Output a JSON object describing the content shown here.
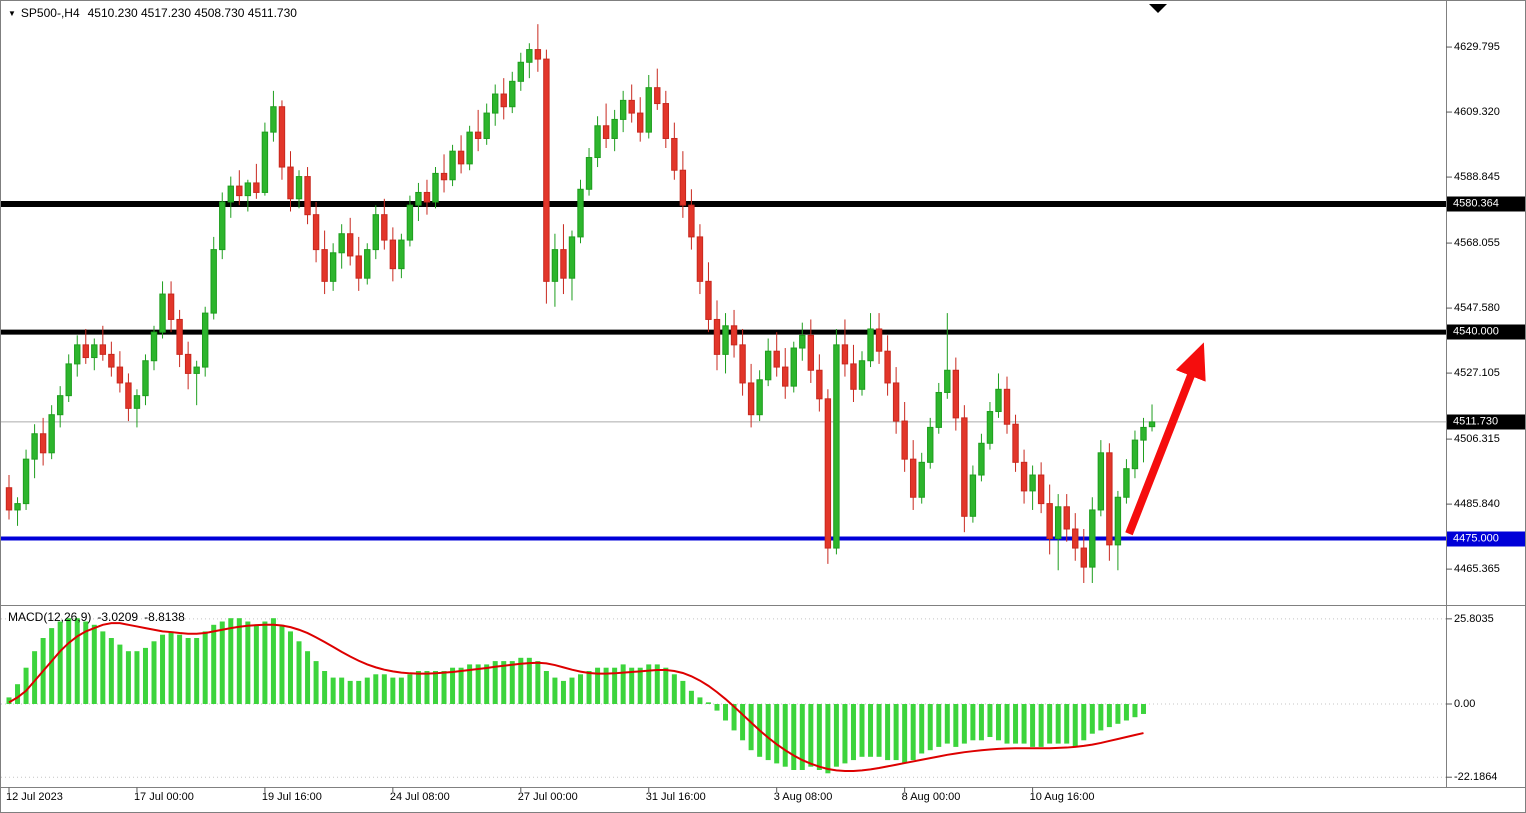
{
  "header": {
    "collapse_icon": "▼",
    "title": "SP500-,H4",
    "ohlc_text": "4510.230 4517.230 4508.730 4511.730"
  },
  "chart_data": {
    "type": "candlestick",
    "symbol": "SP500-",
    "timeframe": "H4",
    "last_bar": {
      "open": "4510.230",
      "high": "4517.230",
      "low": "4508.730",
      "close": "4511.730"
    },
    "price_axis": {
      "labels": [
        "4629.795",
        "4609.320",
        "4588.845",
        "4568.055",
        "4547.580",
        "4527.105",
        "4506.315",
        "4485.840",
        "4465.365"
      ]
    },
    "levels": [
      {
        "label": "4580.364",
        "price": 4580.364,
        "color": "#000000",
        "thickness": 6,
        "badge_bg": "#000000"
      },
      {
        "label": "4540.000",
        "price": 4540.0,
        "color": "#000000",
        "thickness": 5,
        "badge_bg": "#000000"
      },
      {
        "label": "4475.000",
        "price": 4475.0,
        "color": "#0000D8",
        "thickness": 4,
        "badge_bg": "#0000D8"
      }
    ],
    "current_price": {
      "label": "4511.730",
      "price": 4511.73,
      "badge_bg": "#000000"
    },
    "x_axis": {
      "labels": [
        {
          "bar": 0,
          "text": "12 Jul 2023"
        },
        {
          "bar": 15,
          "text": "17 Jul 00:00"
        },
        {
          "bar": 30,
          "text": "19 Jul 16:00"
        },
        {
          "bar": 45,
          "text": "24 Jul 08:00"
        },
        {
          "bar": 60,
          "text": "27 Jul 00:00"
        },
        {
          "bar": 75,
          "text": "31 Jul 16:00"
        },
        {
          "bar": 90,
          "text": "3 Aug 08:00"
        },
        {
          "bar": 105,
          "text": "8 Aug 00:00"
        },
        {
          "bar": 120,
          "text": "10 Aug 16:00"
        }
      ]
    },
    "candles": [
      [
        4491,
        4495,
        4481,
        4484
      ],
      [
        4484,
        4488,
        4479,
        4486
      ],
      [
        4486,
        4503,
        4484,
        4500
      ],
      [
        4500,
        4511,
        4494,
        4508
      ],
      [
        4508,
        4513,
        4498,
        4502
      ],
      [
        4502,
        4517,
        4500,
        4514
      ],
      [
        4514,
        4523,
        4510,
        4520
      ],
      [
        4520,
        4533,
        4518,
        4530
      ],
      [
        4530,
        4539,
        4526,
        4536
      ],
      [
        4536,
        4541,
        4530,
        4532
      ],
      [
        4532,
        4538,
        4528,
        4536
      ],
      [
        4536,
        4542,
        4531,
        4533
      ],
      [
        4533,
        4537,
        4526,
        4529
      ],
      [
        4529,
        4534,
        4521,
        4524
      ],
      [
        4524,
        4527,
        4512,
        4516
      ],
      [
        4516,
        4522,
        4510,
        4520
      ],
      [
        4520,
        4533,
        4517,
        4531
      ],
      [
        4531,
        4542,
        4528,
        4540
      ],
      [
        4540,
        4556,
        4538,
        4552
      ],
      [
        4552,
        4556,
        4540,
        4544
      ],
      [
        4544,
        4547,
        4529,
        4533
      ],
      [
        4533,
        4537,
        4522,
        4527
      ],
      [
        4527,
        4531,
        4517,
        4529
      ],
      [
        4529,
        4548,
        4526,
        4546
      ],
      [
        4546,
        4570,
        4544,
        4566
      ],
      [
        4566,
        4584,
        4563,
        4581
      ],
      [
        4581,
        4589,
        4576,
        4586
      ],
      [
        4586,
        4591,
        4580,
        4583
      ],
      [
        4583,
        4588,
        4578,
        4587
      ],
      [
        4587,
        4593,
        4582,
        4584
      ],
      [
        4584,
        4606,
        4583,
        4603
      ],
      [
        4603,
        4616,
        4600,
        4611
      ],
      [
        4611,
        4613,
        4588,
        4592
      ],
      [
        4592,
        4597,
        4578,
        4582
      ],
      [
        4582,
        4591,
        4579,
        4589
      ],
      [
        4589,
        4592,
        4574,
        4577
      ],
      [
        4577,
        4581,
        4562,
        4566
      ],
      [
        4566,
        4572,
        4552,
        4556
      ],
      [
        4556,
        4568,
        4553,
        4565
      ],
      [
        4565,
        4574,
        4560,
        4571
      ],
      [
        4571,
        4576,
        4561,
        4564
      ],
      [
        4564,
        4570,
        4553,
        4557
      ],
      [
        4557,
        4568,
        4555,
        4566
      ],
      [
        4566,
        4580,
        4563,
        4577
      ],
      [
        4577,
        4582,
        4566,
        4569
      ],
      [
        4569,
        4573,
        4556,
        4560
      ],
      [
        4560,
        4571,
        4557,
        4569
      ],
      [
        4569,
        4583,
        4567,
        4580
      ],
      [
        4580,
        4587,
        4575,
        4584
      ],
      [
        4584,
        4588,
        4577,
        4581
      ],
      [
        4581,
        4592,
        4579,
        4590
      ],
      [
        4590,
        4596,
        4584,
        4588
      ],
      [
        4588,
        4599,
        4586,
        4597
      ],
      [
        4597,
        4602,
        4590,
        4593
      ],
      [
        4593,
        4605,
        4591,
        4603
      ],
      [
        4603,
        4610,
        4597,
        4601
      ],
      [
        4601,
        4612,
        4599,
        4609
      ],
      [
        4609,
        4618,
        4605,
        4615
      ],
      [
        4615,
        4620,
        4607,
        4611
      ],
      [
        4611,
        4622,
        4609,
        4619
      ],
      [
        4619,
        4628,
        4616,
        4625
      ],
      [
        4625,
        4631,
        4620,
        4629
      ],
      [
        4629,
        4637,
        4622,
        4626
      ],
      [
        4626,
        4629,
        4549,
        4556
      ],
      [
        4556,
        4571,
        4548,
        4566
      ],
      [
        4566,
        4574,
        4552,
        4557
      ],
      [
        4557,
        4572,
        4550,
        4570
      ],
      [
        4570,
        4588,
        4568,
        4585
      ],
      [
        4585,
        4598,
        4583,
        4595
      ],
      [
        4595,
        4608,
        4592,
        4605
      ],
      [
        4605,
        4612,
        4598,
        4601
      ],
      [
        4601,
        4610,
        4597,
        4607
      ],
      [
        4607,
        4616,
        4603,
        4613
      ],
      [
        4613,
        4618,
        4606,
        4609
      ],
      [
        4609,
        4614,
        4600,
        4603
      ],
      [
        4603,
        4621,
        4601,
        4617
      ],
      [
        4617,
        4623,
        4610,
        4612
      ],
      [
        4612,
        4616,
        4598,
        4601
      ],
      [
        4601,
        4606,
        4588,
        4591
      ],
      [
        4591,
        4597,
        4576,
        4580
      ],
      [
        4580,
        4585,
        4566,
        4570
      ],
      [
        4570,
        4574,
        4552,
        4556
      ],
      [
        4556,
        4562,
        4540,
        4544
      ],
      [
        4544,
        4550,
        4528,
        4533
      ],
      [
        4533,
        4546,
        4527,
        4542
      ],
      [
        4542,
        4547,
        4532,
        4536
      ],
      [
        4536,
        4541,
        4520,
        4524
      ],
      [
        4524,
        4530,
        4510,
        4514
      ],
      [
        4514,
        4528,
        4512,
        4525
      ],
      [
        4525,
        4538,
        4523,
        4534
      ],
      [
        4534,
        4540,
        4526,
        4529
      ],
      [
        4529,
        4535,
        4519,
        4523
      ],
      [
        4523,
        4537,
        4521,
        4535
      ],
      [
        4535,
        4543,
        4531,
        4539
      ],
      [
        4539,
        4544,
        4524,
        4528
      ],
      [
        4528,
        4533,
        4515,
        4519
      ],
      [
        4519,
        4522,
        4467,
        4472
      ],
      [
        4472,
        4541,
        4470,
        4536
      ],
      [
        4536,
        4544,
        4526,
        4530
      ],
      [
        4530,
        4536,
        4518,
        4522
      ],
      [
        4522,
        4534,
        4520,
        4531
      ],
      [
        4531,
        4546,
        4529,
        4541
      ],
      [
        4541,
        4546,
        4530,
        4534
      ],
      [
        4534,
        4539,
        4520,
        4524
      ],
      [
        4524,
        4529,
        4508,
        4512
      ],
      [
        4512,
        4518,
        4496,
        4500
      ],
      [
        4500,
        4506,
        4484,
        4488
      ],
      [
        4488,
        4502,
        4486,
        4499
      ],
      [
        4499,
        4513,
        4497,
        4510
      ],
      [
        4510,
        4524,
        4508,
        4521
      ],
      [
        4521,
        4546,
        4519,
        4528
      ],
      [
        4528,
        4532,
        4509,
        4513
      ],
      [
        4513,
        4517,
        4477,
        4482
      ],
      [
        4482,
        4498,
        4480,
        4495
      ],
      [
        4495,
        4508,
        4493,
        4505
      ],
      [
        4505,
        4518,
        4503,
        4515
      ],
      [
        4515,
        4527,
        4513,
        4522
      ],
      [
        4522,
        4526,
        4508,
        4511
      ],
      [
        4511,
        4514,
        4496,
        4499
      ],
      [
        4499,
        4503,
        4486,
        4490
      ],
      [
        4490,
        4498,
        4484,
        4495
      ],
      [
        4495,
        4499,
        4483,
        4486
      ],
      [
        4486,
        4492,
        4470,
        4475
      ],
      [
        4475,
        4489,
        4465,
        4485
      ],
      [
        4485,
        4489,
        4474,
        4478
      ],
      [
        4478,
        4483,
        4468,
        4472
      ],
      [
        4472,
        4478,
        4461,
        4466
      ],
      [
        4466,
        4488,
        4461,
        4484
      ],
      [
        4484,
        4506,
        4482,
        4502
      ],
      [
        4502,
        4505,
        4468,
        4473
      ],
      [
        4473,
        4490,
        4465,
        4488
      ],
      [
        4488,
        4500,
        4486,
        4497
      ],
      [
        4497,
        4509,
        4494,
        4506
      ],
      [
        4506,
        4513,
        4499,
        4510
      ],
      [
        4510.23,
        4517.23,
        4508.73,
        4511.73
      ]
    ],
    "macd": {
      "name": "MACD(12,26,9)",
      "value_main": "-3.0209",
      "value_signal": "-8.8138",
      "axis_labels": [
        "25.8035",
        "0.00",
        "-22.1864"
      ],
      "histogram": [
        2,
        6,
        11,
        16,
        20,
        23,
        25,
        26,
        26,
        25,
        24,
        22,
        20,
        18,
        16,
        16,
        17,
        19,
        21,
        22,
        21,
        20,
        20,
        22,
        24,
        25,
        26,
        26,
        25,
        24,
        25,
        26,
        24,
        22,
        19,
        16,
        13,
        10,
        8,
        8,
        7,
        7,
        8,
        9,
        9,
        8,
        8,
        9,
        10,
        10,
        10,
        10,
        11,
        11,
        12,
        12,
        12,
        13,
        13,
        13,
        14,
        14,
        13,
        10,
        8,
        7,
        8,
        9,
        10,
        11,
        11,
        11,
        12,
        11,
        11,
        12,
        12,
        11,
        9,
        7,
        4,
        2,
        0.5,
        -2,
        -5,
        -8,
        -11,
        -14,
        -16,
        -17,
        -18,
        -19,
        -20,
        -20,
        -19,
        -20,
        -21,
        -19,
        -18,
        -17,
        -16,
        -16,
        -16,
        -17,
        -17,
        -18,
        -17,
        -15,
        -14,
        -13,
        -12,
        -13,
        -12,
        -11,
        -11,
        -10,
        -11,
        -12,
        -12,
        -12,
        -13,
        -13,
        -12,
        -12,
        -12,
        -13,
        -11,
        -9,
        -8,
        -7,
        -6,
        -5,
        -4,
        -3.02
      ],
      "signal": [
        0.5,
        2,
        4,
        7,
        10,
        13,
        16,
        18.5,
        20.5,
        22,
        23,
        24,
        24.5,
        24.5,
        24,
        23.5,
        23,
        22.5,
        22,
        21.8,
        21.5,
        21.3,
        21.3,
        21.5,
        22,
        22.5,
        23,
        23.4,
        23.7,
        23.9,
        24,
        24,
        23.8,
        23.3,
        22.5,
        21.5,
        20.2,
        18.8,
        17.3,
        15.8,
        14.4,
        13.1,
        12,
        11.1,
        10.4,
        9.9,
        9.5,
        9.3,
        9.2,
        9.2,
        9.3,
        9.5,
        9.7,
        10,
        10.3,
        10.6,
        10.9,
        11.3,
        11.6,
        11.9,
        12.2,
        12.4,
        12.5,
        12.3,
        11.8,
        11.1,
        10.4,
        9.8,
        9.4,
        9.2,
        9.2,
        9.3,
        9.5,
        9.7,
        9.9,
        10.1,
        10.3,
        10.3,
        10,
        9.4,
        8.4,
        7.1,
        5.5,
        3.6,
        1.5,
        -0.8,
        -3.2,
        -5.6,
        -8,
        -10.2,
        -12.2,
        -14,
        -15.6,
        -17,
        -18.1,
        -19,
        -19.7,
        -20.1,
        -20.3,
        -20.3,
        -20.1,
        -19.8,
        -19.4,
        -18.9,
        -18.4,
        -17.9,
        -17.4,
        -16.9,
        -16.4,
        -15.9,
        -15.4,
        -15,
        -14.6,
        -14.3,
        -14,
        -13.8,
        -13.6,
        -13.5,
        -13.4,
        -13.4,
        -13.4,
        -13.4,
        -13.4,
        -13.3,
        -13.2,
        -13,
        -12.7,
        -12.3,
        -11.8,
        -11.2,
        -10.6,
        -10,
        -9.4,
        -8.81
      ]
    },
    "annotations": {
      "arrow": {
        "x1_bar": 131.3,
        "y1_price": 4476.5,
        "x2_bar": 139.6,
        "y2_price": 4533.5,
        "color": "#F50D0D",
        "width": 8
      }
    },
    "style": {
      "up_color": "#1E9E1E",
      "up_fill": "#2DB52D",
      "down_color": "#C8281E",
      "down_fill": "#E2362A",
      "hist_color": "#3CD43C",
      "signal_color": "#DD0000",
      "grid_color": "#C4C4C4",
      "axis_line_color": "#808080",
      "bid_line_color": "#ABABAB",
      "background": "#FFFFFF"
    }
  }
}
